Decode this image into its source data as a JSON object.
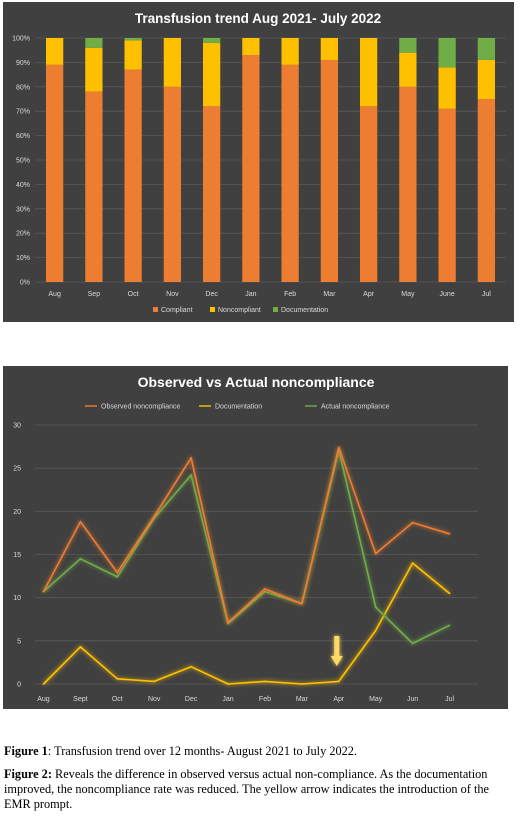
{
  "chart_data": [
    {
      "type": "bar",
      "stacked": true,
      "title": "Transfusion trend Aug 2021- July 2022",
      "categories": [
        "Aug",
        "Sep",
        "Oct",
        "Nov",
        "Dec",
        "Jan",
        "Feb",
        "Mar",
        "Apr",
        "May",
        "June",
        "Jul"
      ],
      "series": [
        {
          "name": "Compliant",
          "color": "#ed7d31",
          "values": [
            89,
            78,
            87,
            80,
            72,
            93,
            89,
            91,
            72,
            80,
            71,
            75
          ]
        },
        {
          "name": "Noncompliant",
          "color": "#ffc000",
          "values": [
            11,
            18,
            12,
            20,
            26,
            7,
            11,
            9,
            28,
            14,
            17,
            16
          ]
        },
        {
          "name": "Documentation",
          "color": "#70ad47",
          "values": [
            0,
            4,
            1,
            0,
            2,
            0,
            0,
            0,
            0,
            6,
            12,
            9
          ]
        }
      ],
      "y_ticks": [
        "0%",
        "10%",
        "20%",
        "30%",
        "40%",
        "50%",
        "60%",
        "70%",
        "80%",
        "90%",
        "100%"
      ],
      "ylim": [
        0,
        100
      ],
      "grid": true,
      "legend": "bottom"
    },
    {
      "type": "line",
      "title": "Observed vs Actual noncompliance",
      "categories": [
        "Aug",
        "Sept",
        "Oct",
        "Nov",
        "Dec",
        "Jan",
        "Feb",
        "Mar",
        "Apr",
        "May",
        "Jun",
        "Jul"
      ],
      "series": [
        {
          "name": "Observed noncompliance",
          "color": "#ed7d31",
          "values": [
            10.7,
            18.8,
            12.9,
            19.4,
            26.2,
            7.1,
            11.0,
            9.3,
            27.4,
            15.1,
            18.7,
            17.4
          ]
        },
        {
          "name": "Documentation",
          "color": "#ffc000",
          "values": [
            0,
            4.3,
            0.6,
            0.3,
            2.0,
            0,
            0.3,
            0,
            0.3,
            6.2,
            14.0,
            10.5
          ]
        },
        {
          "name": "Actual noncompliance",
          "color": "#70ad47",
          "values": [
            10.7,
            14.5,
            12.4,
            19.2,
            24.2,
            7.0,
            10.7,
            9.3,
            27.1,
            8.9,
            4.7,
            6.8
          ]
        }
      ],
      "y_ticks": [
        "0",
        "5",
        "10",
        "15",
        "20",
        "25",
        "30"
      ],
      "ylim": [
        0,
        30
      ],
      "grid": true,
      "legend": "top",
      "annotation": {
        "type": "arrow",
        "at_category": "Apr",
        "color": "#ffd966"
      }
    }
  ],
  "captions": {
    "fig1_label": "Figure 1",
    "fig1_text": ":  Transfusion trend over 12 months- August 2021 to July 2022.",
    "fig2_label": "Figure 2:",
    "fig2_text": " Reveals the difference in observed versus actual non-compliance. As the documentation improved, the noncompliance rate was reduced. The yellow arrow indicates the introduction of the EMR prompt."
  }
}
